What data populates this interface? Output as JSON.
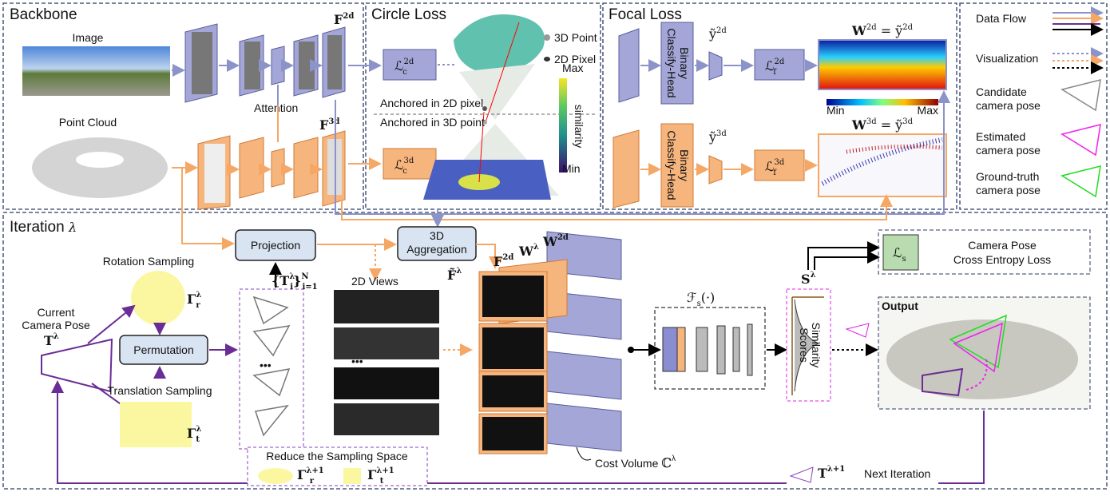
{
  "sections": {
    "backbone": "Backbone",
    "circle_loss": "Circle Loss",
    "focal_loss": "Focal Loss",
    "iteration": {
      "text": "Iteration",
      "symbol": "λ"
    }
  },
  "backbone": {
    "image": "Image",
    "point_cloud": "Point Cloud",
    "attention": "Attention",
    "f2d": {
      "base": "F",
      "sup": "2d"
    },
    "f3d": {
      "base": "F",
      "sup": "3d"
    }
  },
  "circle_loss": {
    "lc2d": {
      "base": "ℒ",
      "sub": "c",
      "sup": "2d"
    },
    "lc3d": {
      "base": "ℒ",
      "sub": "c",
      "sup": "3d"
    },
    "point_3d": "3D Point",
    "pixel_2d": "2D Pixel",
    "anchored_2d": "Anchored in 2D pixel",
    "anchored_3d": "Anchored in 3D point",
    "colorbar": {
      "max": "Max",
      "label": "similarity",
      "min": "Min"
    }
  },
  "focal_loss": {
    "head_2d": [
      "Binary",
      "Classify-Head"
    ],
    "head_3d": [
      "Binary",
      "Classify-Head"
    ],
    "y2d": {
      "base": "ỹ",
      "sup": "2d"
    },
    "y3d": {
      "base": "ỹ",
      "sup": "3d"
    },
    "lf2d": {
      "base": "ℒ",
      "sub": "f",
      "sup": "2d"
    },
    "lf3d": {
      "base": "ℒ",
      "sub": "f",
      "sup": "3d"
    },
    "w2d": {
      "lhs": {
        "base": "W",
        "sup": "2d"
      },
      "eq": "=",
      "rhs": {
        "base": "ỹ",
        "sup": "2d"
      }
    },
    "w3d": {
      "lhs": {
        "base": "W",
        "sup": "3d"
      },
      "eq": "=",
      "rhs": {
        "base": "ỹ",
        "sup": "3d"
      }
    },
    "colorbar": {
      "min": "Min",
      "max": "Max"
    }
  },
  "legend": {
    "items": [
      {
        "lines": [
          "Data Flow"
        ]
      },
      {
        "lines": [
          "Visualization"
        ]
      },
      {
        "lines": [
          "Candidate",
          "camera pose"
        ]
      },
      {
        "lines": [
          "Estimated",
          "camera pose"
        ]
      },
      {
        "lines": [
          "Ground-truth",
          "camera pose"
        ]
      }
    ]
  },
  "iteration": {
    "projection": "Projection",
    "aggregation": [
      "3D",
      "Aggregation"
    ],
    "rotation_sampling": "Rotation Sampling",
    "gamma_r": {
      "base": "Γ",
      "sub": "r",
      "sup": "λ"
    },
    "current_pose": [
      "Current",
      "Camera Pose"
    ],
    "t_lambda": {
      "base": "T",
      "sup": "λ"
    },
    "permutation": "Permutation",
    "translation_sampling": "Translation Sampling",
    "gamma_t": {
      "base": "Γ",
      "sub": "t",
      "sup": "λ"
    },
    "candidates": {
      "base": "{T",
      "sub": "i",
      "sup": "λ",
      "close": "}",
      "close_sub": "i=1",
      "close_sup": "N"
    },
    "views": "2D Views",
    "f_tilde": {
      "base": "F̃",
      "sup": "λ"
    },
    "f2d": {
      "base": "F",
      "sup": "2d"
    },
    "w_lambda": {
      "base": "W",
      "sup": "λ"
    },
    "w2d": {
      "base": "W",
      "sup": "2d"
    },
    "fs": {
      "base": "ℱ",
      "sub": "s",
      "arg": "(·)"
    },
    "s_lambda": {
      "base": "S",
      "sup": "λ"
    },
    "ls": {
      "base": "ℒ",
      "sub": "s"
    },
    "loss_text": [
      "Camera Pose",
      "Cross Entropy Loss"
    ],
    "scores": [
      "Similarity",
      "Scores"
    ],
    "output": "Output",
    "cost_volume": {
      "text": "Cost Volume",
      "base": "ℂ",
      "sup": "λ"
    },
    "reduce": "Reduce the Sampling Space",
    "gamma_r_next": {
      "base": "Γ",
      "sub": "r",
      "sup": "λ+1"
    },
    "gamma_t_next": {
      "base": "Γ",
      "sub": "t",
      "sup": "λ+1"
    },
    "t_next": {
      "base": "T",
      "sup": "λ+1"
    },
    "next_iteration": "Next Iteration"
  }
}
